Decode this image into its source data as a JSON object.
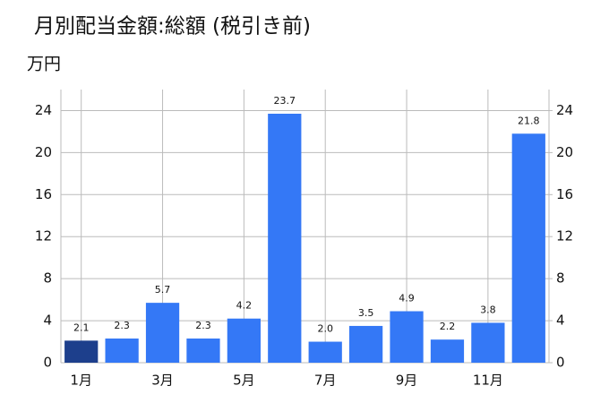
{
  "chart_data": {
    "type": "bar",
    "title": "月別配当金額:総額 (税引き前)",
    "y_label": "万円",
    "categories": [
      "1月",
      null,
      "3月",
      null,
      "5月",
      null,
      "7月",
      null,
      "9月",
      null,
      "11月",
      null
    ],
    "values": [
      2.1,
      2.3,
      5.7,
      2.3,
      4.2,
      23.7,
      2.0,
      3.5,
      4.9,
      2.2,
      3.8,
      21.8
    ],
    "value_labels": [
      "2.1",
      "2.3",
      "5.7",
      "2.3",
      "4.2",
      "23.7",
      "2.0",
      "3.5",
      "4.9",
      "2.2",
      "3.8",
      "21.8"
    ],
    "colors": [
      "#1d3f8c",
      "#3478f6",
      "#3478f6",
      "#3478f6",
      "#3478f6",
      "#3478f6",
      "#3478f6",
      "#3478f6",
      "#3478f6",
      "#3478f6",
      "#3478f6",
      "#3478f6"
    ],
    "ylim": [
      0,
      26
    ],
    "yticks": [
      0,
      4,
      8,
      12,
      16,
      20,
      24
    ],
    "y2lim": [
      0,
      26
    ],
    "y2ticks": [
      0,
      4,
      8,
      12,
      16,
      20,
      24
    ],
    "grid": true
  }
}
